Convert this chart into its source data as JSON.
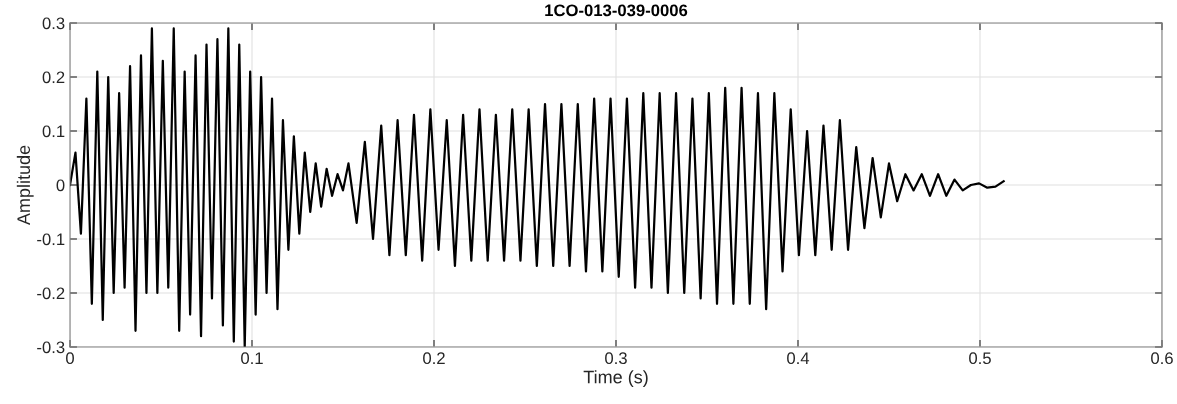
{
  "chart_data": {
    "type": "line",
    "title": "1CO-013-039-0006",
    "xlabel": "Time (s)",
    "ylabel": "Amplitude",
    "xlim": [
      0,
      0.6
    ],
    "xticks": [
      0,
      0.1,
      0.2,
      0.3,
      0.4,
      0.5,
      0.6
    ],
    "ylim": [
      -0.3,
      0.3
    ],
    "yticks": [
      -0.3,
      -0.2,
      -0.1,
      0,
      0.1,
      0.2,
      0.3
    ],
    "grid": true,
    "series": [
      {
        "color": "#000000",
        "x": [
          0.0,
          0.003,
          0.006,
          0.009,
          0.012,
          0.015,
          0.018,
          0.021,
          0.024,
          0.027,
          0.03,
          0.033,
          0.036,
          0.039,
          0.042,
          0.045,
          0.048,
          0.051,
          0.054,
          0.057,
          0.06,
          0.063,
          0.066,
          0.069,
          0.072,
          0.075,
          0.078,
          0.081,
          0.084,
          0.087,
          0.09,
          0.093,
          0.096,
          0.099,
          0.102,
          0.105,
          0.108,
          0.111,
          0.114,
          0.117,
          0.12,
          0.123,
          0.126,
          0.129,
          0.132,
          0.135,
          0.138,
          0.141,
          0.144,
          0.147,
          0.15,
          0.153,
          0.1575,
          0.162,
          0.1665,
          0.171,
          0.1755,
          0.18,
          0.1845,
          0.189,
          0.1935,
          0.198,
          0.2025,
          0.207,
          0.2115,
          0.216,
          0.2205,
          0.225,
          0.2295,
          0.234,
          0.2385,
          0.243,
          0.2475,
          0.252,
          0.2565,
          0.261,
          0.2655,
          0.27,
          0.2745,
          0.279,
          0.2835,
          0.288,
          0.2925,
          0.297,
          0.3015,
          0.306,
          0.3105,
          0.315,
          0.3195,
          0.324,
          0.3285,
          0.333,
          0.3375,
          0.342,
          0.3465,
          0.351,
          0.3555,
          0.36,
          0.3645,
          0.369,
          0.3735,
          0.378,
          0.3825,
          0.387,
          0.3915,
          0.396,
          0.4005,
          0.405,
          0.4095,
          0.414,
          0.4185,
          0.423,
          0.4275,
          0.432,
          0.4365,
          0.441,
          0.4455,
          0.45,
          0.4545,
          0.459,
          0.4635,
          0.468,
          0.4725,
          0.477,
          0.4815,
          0.486,
          0.4905,
          0.495,
          0.4995,
          0.504,
          0.5085,
          0.513
        ],
        "values": [
          0.0,
          0.06,
          -0.09,
          0.16,
          -0.22,
          0.21,
          -0.25,
          0.2,
          -0.2,
          0.17,
          -0.19,
          0.22,
          -0.27,
          0.24,
          -0.2,
          0.29,
          -0.2,
          0.23,
          -0.19,
          0.29,
          -0.27,
          0.21,
          -0.24,
          0.24,
          -0.28,
          0.26,
          -0.21,
          0.27,
          -0.26,
          0.29,
          -0.29,
          0.26,
          -0.3,
          0.21,
          -0.24,
          0.2,
          -0.2,
          0.16,
          -0.23,
          0.12,
          -0.12,
          0.09,
          -0.09,
          0.06,
          -0.05,
          0.04,
          -0.04,
          0.03,
          -0.02,
          0.02,
          -0.01,
          0.04,
          -0.07,
          0.08,
          -0.1,
          0.11,
          -0.13,
          0.12,
          -0.13,
          0.13,
          -0.14,
          0.14,
          -0.12,
          0.12,
          -0.15,
          0.13,
          -0.14,
          0.14,
          -0.14,
          0.13,
          -0.14,
          0.14,
          -0.14,
          0.14,
          -0.15,
          0.15,
          -0.15,
          0.15,
          -0.15,
          0.15,
          -0.16,
          0.16,
          -0.16,
          0.16,
          -0.17,
          0.16,
          -0.19,
          0.17,
          -0.19,
          0.17,
          -0.2,
          0.17,
          -0.2,
          0.16,
          -0.21,
          0.17,
          -0.22,
          0.18,
          -0.22,
          0.18,
          -0.22,
          0.17,
          -0.23,
          0.17,
          -0.16,
          0.14,
          -0.13,
          0.1,
          -0.13,
          0.11,
          -0.12,
          0.12,
          -0.12,
          0.07,
          -0.08,
          0.05,
          -0.06,
          0.04,
          -0.03,
          0.02,
          -0.01,
          0.02,
          -0.02,
          0.02,
          -0.02,
          0.01,
          -0.01,
          0.0,
          0.003,
          -0.005,
          -0.003,
          0.007
        ]
      }
    ]
  }
}
